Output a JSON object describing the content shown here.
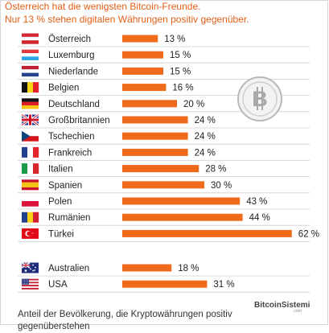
{
  "header": {
    "title_line1": "Österreich hat die wenigsten Bitcoin-Freunde.",
    "title_line2": "Nur 13 % stehen digitalen Währungen positiv gegenüber."
  },
  "footer": {
    "note_line1": "Anteil der Bevölkerung, die Kryptowährungen positiv",
    "note_line2": "gegenüberstehen"
  },
  "watermark": {
    "text": "BitcoinSistemi",
    "sub": ".com"
  },
  "colors": {
    "bar": "#f06a1c",
    "title": "#e35f16"
  },
  "icons": {
    "coin": "bitcoin-coin-icon"
  },
  "chart_data": {
    "type": "bar",
    "orientation": "horizontal",
    "unit": "%",
    "xlim": [
      0,
      65
    ],
    "groups": [
      {
        "name": "europe",
        "rows": [
          {
            "label": "Österreich",
            "value": 13,
            "value_label": "13 %",
            "flag": "AT"
          },
          {
            "label": "Luxemburg",
            "value": 15,
            "value_label": "15 %",
            "flag": "LU"
          },
          {
            "label": "Niederlande",
            "value": 15,
            "value_label": "15 %",
            "flag": "NL"
          },
          {
            "label": "Belgien",
            "value": 16,
            "value_label": "16 %",
            "flag": "BE"
          },
          {
            "label": "Deutschland",
            "value": 20,
            "value_label": "20 %",
            "flag": "DE"
          },
          {
            "label": "Großbritannien",
            "value": 24,
            "value_label": "24 %",
            "flag": "GB"
          },
          {
            "label": "Tschechien",
            "value": 24,
            "value_label": "24 %",
            "flag": "CZ"
          },
          {
            "label": "Frankreich",
            "value": 24,
            "value_label": "24 %",
            "flag": "FR"
          },
          {
            "label": "Italien",
            "value": 28,
            "value_label": "28 %",
            "flag": "IT"
          },
          {
            "label": "Spanien",
            "value": 30,
            "value_label": "30 %",
            "flag": "ES"
          },
          {
            "label": "Polen",
            "value": 43,
            "value_label": "43 %",
            "flag": "PL"
          },
          {
            "label": "Rumänien",
            "value": 44,
            "value_label": "44 %",
            "flag": "RO"
          },
          {
            "label": "Türkei",
            "value": 62,
            "value_label": "62 %",
            "flag": "TR"
          }
        ]
      },
      {
        "name": "other",
        "rows": [
          {
            "label": "Australien",
            "value": 18,
            "value_label": "18 %",
            "flag": "AU"
          },
          {
            "label": "USA",
            "value": 31,
            "value_label": "31 %",
            "flag": "US"
          }
        ]
      }
    ]
  }
}
